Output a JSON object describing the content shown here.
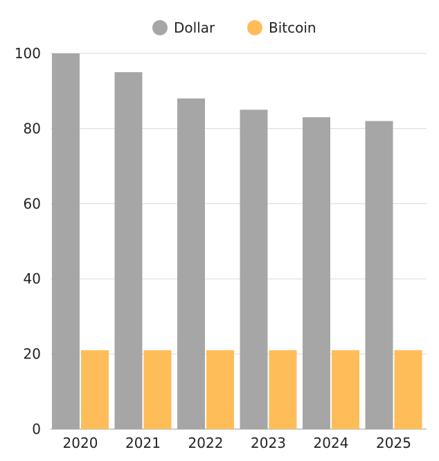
{
  "chart_data": {
    "type": "bar",
    "categories": [
      "2020",
      "2021",
      "2022",
      "2023",
      "2024",
      "2025"
    ],
    "series": [
      {
        "name": "Dollar",
        "color": "#a6a6a6",
        "values": [
          100,
          95,
          88,
          85,
          83,
          82
        ]
      },
      {
        "name": "Bitcoin",
        "color": "#ffbd59",
        "values": [
          21,
          21,
          21,
          21,
          21,
          21
        ]
      }
    ],
    "title": "",
    "xlabel": "",
    "ylabel": "",
    "ylim": [
      0,
      100
    ],
    "yticks": [
      "0",
      "20",
      "40",
      "60",
      "80",
      "100"
    ],
    "grid": true,
    "legend_position": "top-center"
  }
}
